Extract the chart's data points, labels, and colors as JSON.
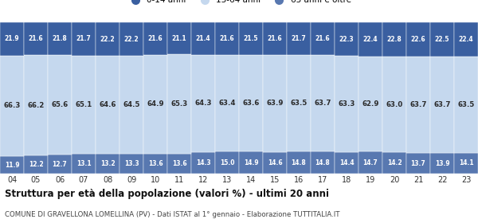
{
  "years": [
    "04",
    "05",
    "06",
    "07",
    "08",
    "09",
    "10",
    "11",
    "12",
    "13",
    "14",
    "15",
    "16",
    "17",
    "18",
    "19",
    "20",
    "21",
    "22",
    "23"
  ],
  "young": [
    21.9,
    21.6,
    21.8,
    21.7,
    22.2,
    22.2,
    21.6,
    21.1,
    21.4,
    21.6,
    21.5,
    21.6,
    21.7,
    21.6,
    22.3,
    22.4,
    22.8,
    22.6,
    22.5,
    22.4
  ],
  "adult": [
    66.3,
    66.2,
    65.6,
    65.1,
    64.6,
    64.5,
    64.9,
    65.3,
    64.3,
    63.4,
    63.6,
    63.9,
    63.5,
    63.7,
    63.3,
    62.9,
    63.0,
    63.7,
    63.7,
    63.5
  ],
  "elderly": [
    11.9,
    12.2,
    12.7,
    13.1,
    13.2,
    13.3,
    13.6,
    13.6,
    14.3,
    15.0,
    14.9,
    14.6,
    14.8,
    14.8,
    14.4,
    14.7,
    14.2,
    13.7,
    13.9,
    14.1
  ],
  "color_young": "#3a5fa0",
  "color_adult": "#c5d8ee",
  "color_elderly": "#5878b0",
  "legend_labels": [
    "0-14 anni",
    "15-64 anni",
    "65 anni e oltre"
  ],
  "title": "Struttura per età della popolazione (valori %) - ultimi 20 anni",
  "subtitle": "COMUNE DI GRAVELLONA LOMELLINA (PV) - Dati ISTAT al 1° gennaio - Elaborazione TUTTITALIA.IT",
  "bar_text_fontsize": 5.5,
  "adult_text_fontsize": 6.2,
  "axis_label_fontsize": 7.0,
  "title_fontsize": 8.5,
  "subtitle_fontsize": 6.2,
  "background_color": "#ffffff",
  "bar_edge_color": "#ffffff"
}
